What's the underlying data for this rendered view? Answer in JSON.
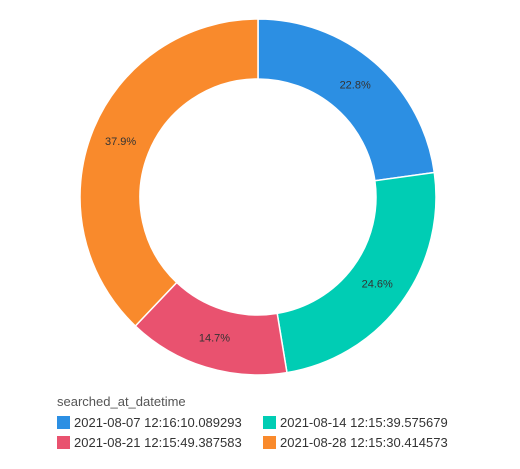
{
  "chart_data": {
    "type": "pie",
    "donut": true,
    "title": "",
    "legend_title": "searched_at_datetime",
    "legend_position": "bottom-left",
    "slices": [
      {
        "name": "2021-08-07 12:16:10.089293",
        "value": 22.8,
        "label": "22.8%",
        "color": "#2c8fe3"
      },
      {
        "name": "2021-08-14 12:15:39.575679",
        "value": 24.6,
        "label": "24.6%",
        "color": "#00cdb4"
      },
      {
        "name": "2021-08-21 12:15:49.387583",
        "value": 14.7,
        "label": "14.7%",
        "color": "#e9526f"
      },
      {
        "name": "2021-08-28 12:15:30.414573",
        "value": 37.9,
        "label": "37.9%",
        "color": "#f98a2c"
      }
    ]
  }
}
